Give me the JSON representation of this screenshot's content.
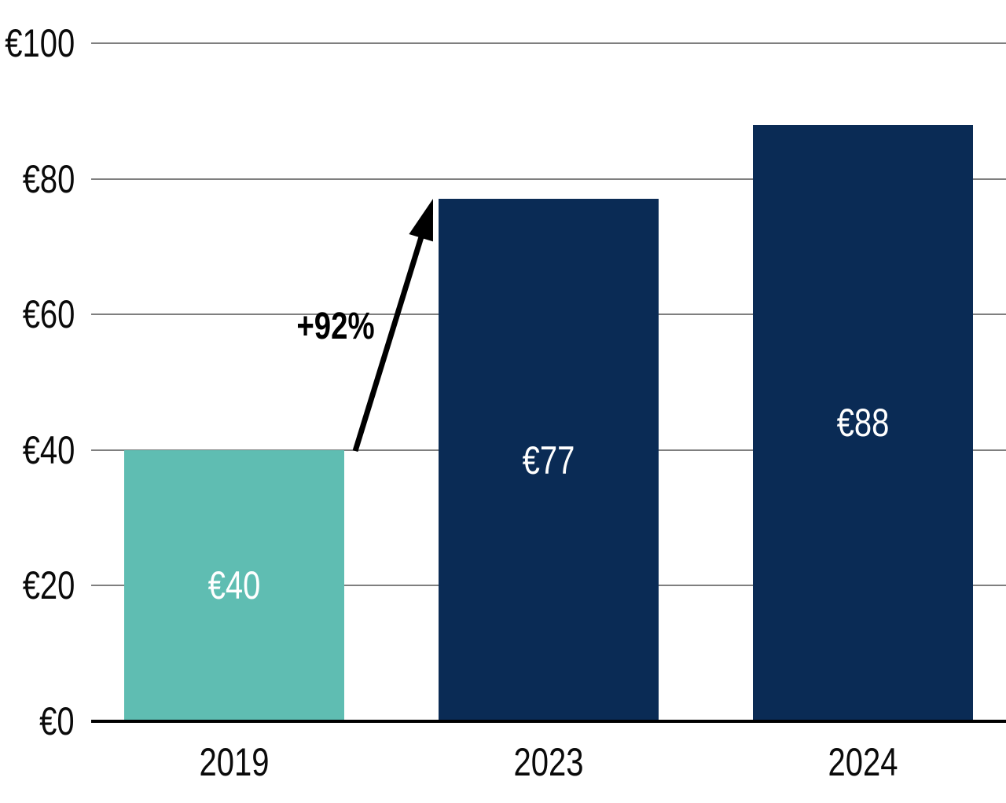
{
  "chart_data": {
    "type": "bar",
    "title": "",
    "categories": [
      "2019",
      "2023",
      "2024"
    ],
    "values": [
      40,
      77,
      88
    ],
    "bar_labels": [
      "€40",
      "€77",
      "€88"
    ],
    "bar_colors": [
      "#5FBDB2",
      "#0A2B55",
      "#0A2B55"
    ],
    "bar_label_color": "#FFFFFF",
    "xlabel": "",
    "ylabel": "",
    "ylim": [
      0,
      100
    ],
    "yticks": [
      0,
      20,
      40,
      60,
      80,
      100
    ],
    "ytick_labels": [
      "€0",
      "€20",
      "€40",
      "€60",
      "€80",
      "€100"
    ],
    "grid": true,
    "gridline_color": "#7F7F7F",
    "axis_color": "#000000",
    "text_color": "#0A0A0A",
    "legend_position": "none",
    "annotation": {
      "text": "+92%",
      "from": {
        "category": "2019",
        "value": 40
      },
      "to": {
        "category": "2023",
        "value": 77
      },
      "arrow_color": "#000000"
    }
  }
}
